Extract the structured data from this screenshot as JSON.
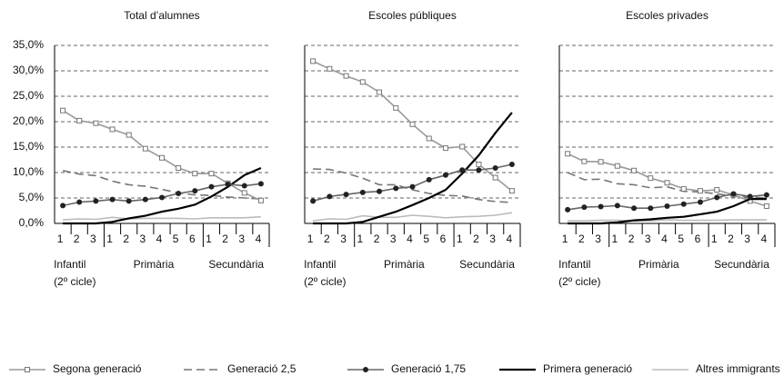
{
  "chart_data": [
    {
      "type": "line",
      "title": "Total d’alumnes",
      "legend": "bottom",
      "groups": [
        {
          "label": "Infantil",
          "note": "(2º cicle)",
          "categories": [
            "1",
            "2",
            "3"
          ]
        },
        {
          "label": "Primària",
          "categories": [
            "1",
            "2",
            "3",
            "4",
            "5",
            "6"
          ]
        },
        {
          "label": "Secundària",
          "categories": [
            "1",
            "2",
            "3",
            "4"
          ]
        }
      ],
      "ylim": [
        0,
        35
      ],
      "yticks": [
        {
          "value": 0,
          "label": "0,0%"
        },
        {
          "value": 5,
          "label": "5,0%"
        },
        {
          "value": 10,
          "label": "10,0%"
        },
        {
          "value": 15,
          "label": "15,0%"
        },
        {
          "value": 20,
          "label": "20,0%"
        },
        {
          "value": 25,
          "label": "25,0%"
        },
        {
          "value": 30,
          "label": "30,0%"
        },
        {
          "value": 35,
          "label": "35,0%"
        }
      ],
      "grid": true,
      "series": [
        {
          "name": "Segona generació",
          "color": "#999999",
          "marker": "square",
          "line_style": "solid",
          "values": [
            22.2,
            20.2,
            19.7,
            18.5,
            17.4,
            14.7,
            12.9,
            10.9,
            9.8,
            9.8,
            7.9,
            6.0,
            4.5
          ]
        },
        {
          "name": "Generació 2,5",
          "color": "#777777",
          "marker": "none",
          "line_style": "dashed",
          "values": [
            10.4,
            9.7,
            9.4,
            8.3,
            7.6,
            7.3,
            6.7,
            6.0,
            5.6,
            5.5,
            5.2,
            5.0,
            4.8
          ]
        },
        {
          "name": "Generació 1,75",
          "color": "#666666",
          "marker": "circle",
          "line_style": "solid",
          "values": [
            3.5,
            4.2,
            4.4,
            4.7,
            4.4,
            4.7,
            5.1,
            5.9,
            6.4,
            7.2,
            7.7,
            7.4,
            7.8
          ]
        },
        {
          "name": "Primera generació",
          "color": "#000000",
          "marker": "none",
          "line_style": "bold",
          "values": [
            0.0,
            0.0,
            0.0,
            0.3,
            1.0,
            1.5,
            2.3,
            2.9,
            3.7,
            5.3,
            7.2,
            9.5,
            10.9
          ]
        },
        {
          "name": "Altres immigrants",
          "color": "#bbbbbb",
          "marker": "none",
          "line_style": "solid",
          "values": [
            0.7,
            0.9,
            0.8,
            1.2,
            0.9,
            1.0,
            1.0,
            1.0,
            0.9,
            1.1,
            1.1,
            1.1,
            1.3
          ]
        }
      ]
    },
    {
      "type": "line",
      "title": "Escoles públiques",
      "groups": [
        {
          "label": "Infantil",
          "note": "(2º cicle)",
          "categories": [
            "1",
            "2",
            "3"
          ]
        },
        {
          "label": "Primària",
          "categories": [
            "1",
            "2",
            "3",
            "4",
            "5",
            "6"
          ]
        },
        {
          "label": "Secundària",
          "categories": [
            "1",
            "2",
            "3",
            "4"
          ]
        }
      ],
      "ylim": [
        0,
        35
      ],
      "yticks": [
        0,
        5,
        10,
        15,
        20,
        25,
        30,
        35
      ],
      "grid": true,
      "series": [
        {
          "values": [
            31.9,
            30.4,
            29.0,
            27.8,
            25.8,
            22.7,
            19.5,
            16.7,
            14.8,
            15.1,
            11.6,
            9.0,
            6.4
          ]
        },
        {
          "values": [
            10.7,
            10.6,
            9.9,
            8.9,
            7.6,
            7.6,
            6.6,
            5.9,
            5.5,
            5.4,
            4.7,
            4.3,
            4.1
          ]
        },
        {
          "values": [
            4.4,
            5.3,
            5.7,
            6.1,
            6.3,
            6.9,
            7.2,
            8.6,
            9.5,
            10.5,
            10.5,
            10.9,
            11.6
          ]
        },
        {
          "values": [
            0.0,
            0.0,
            0.0,
            0.3,
            1.3,
            2.3,
            3.6,
            5.0,
            6.6,
            9.8,
            13.4,
            17.8,
            21.8
          ]
        },
        {
          "values": [
            0.5,
            0.9,
            0.8,
            1.5,
            1.2,
            1.2,
            1.6,
            1.4,
            1.1,
            1.3,
            1.4,
            1.6,
            2.1
          ]
        }
      ]
    },
    {
      "type": "line",
      "title": "Escoles privades",
      "groups": [
        {
          "label": "Infantil",
          "note": "(2º cicle)",
          "categories": [
            "1",
            "2",
            "3"
          ]
        },
        {
          "label": "Primària",
          "categories": [
            "1",
            "2",
            "3",
            "4",
            "5",
            "6"
          ]
        },
        {
          "label": "Secundària",
          "categories": [
            "1",
            "2",
            "3",
            "4"
          ]
        }
      ],
      "ylim": [
        0,
        35
      ],
      "yticks": [
        0,
        5,
        10,
        15,
        20,
        25,
        30,
        35
      ],
      "grid": true,
      "series": [
        {
          "values": [
            13.7,
            12.2,
            12.1,
            11.3,
            10.4,
            8.9,
            8.0,
            6.8,
            6.4,
            6.6,
            5.6,
            4.4,
            3.4
          ]
        },
        {
          "values": [
            10.0,
            8.6,
            8.7,
            7.8,
            7.6,
            7.0,
            7.2,
            6.3,
            6.2,
            5.8,
            5.4,
            5.2,
            5.0
          ]
        },
        {
          "values": [
            2.7,
            3.2,
            3.3,
            3.5,
            3.0,
            3.0,
            3.4,
            3.8,
            4.2,
            5.1,
            5.8,
            5.3,
            5.6
          ]
        },
        {
          "values": [
            0.0,
            0.0,
            0.0,
            0.2,
            0.6,
            0.8,
            1.1,
            1.3,
            1.8,
            2.3,
            3.4,
            4.8,
            4.8
          ]
        },
        {
          "values": [
            0.5,
            0.5,
            0.6,
            0.6,
            0.5,
            0.5,
            0.7,
            0.6,
            0.6,
            0.6,
            0.7,
            0.7,
            0.7
          ]
        }
      ]
    }
  ]
}
